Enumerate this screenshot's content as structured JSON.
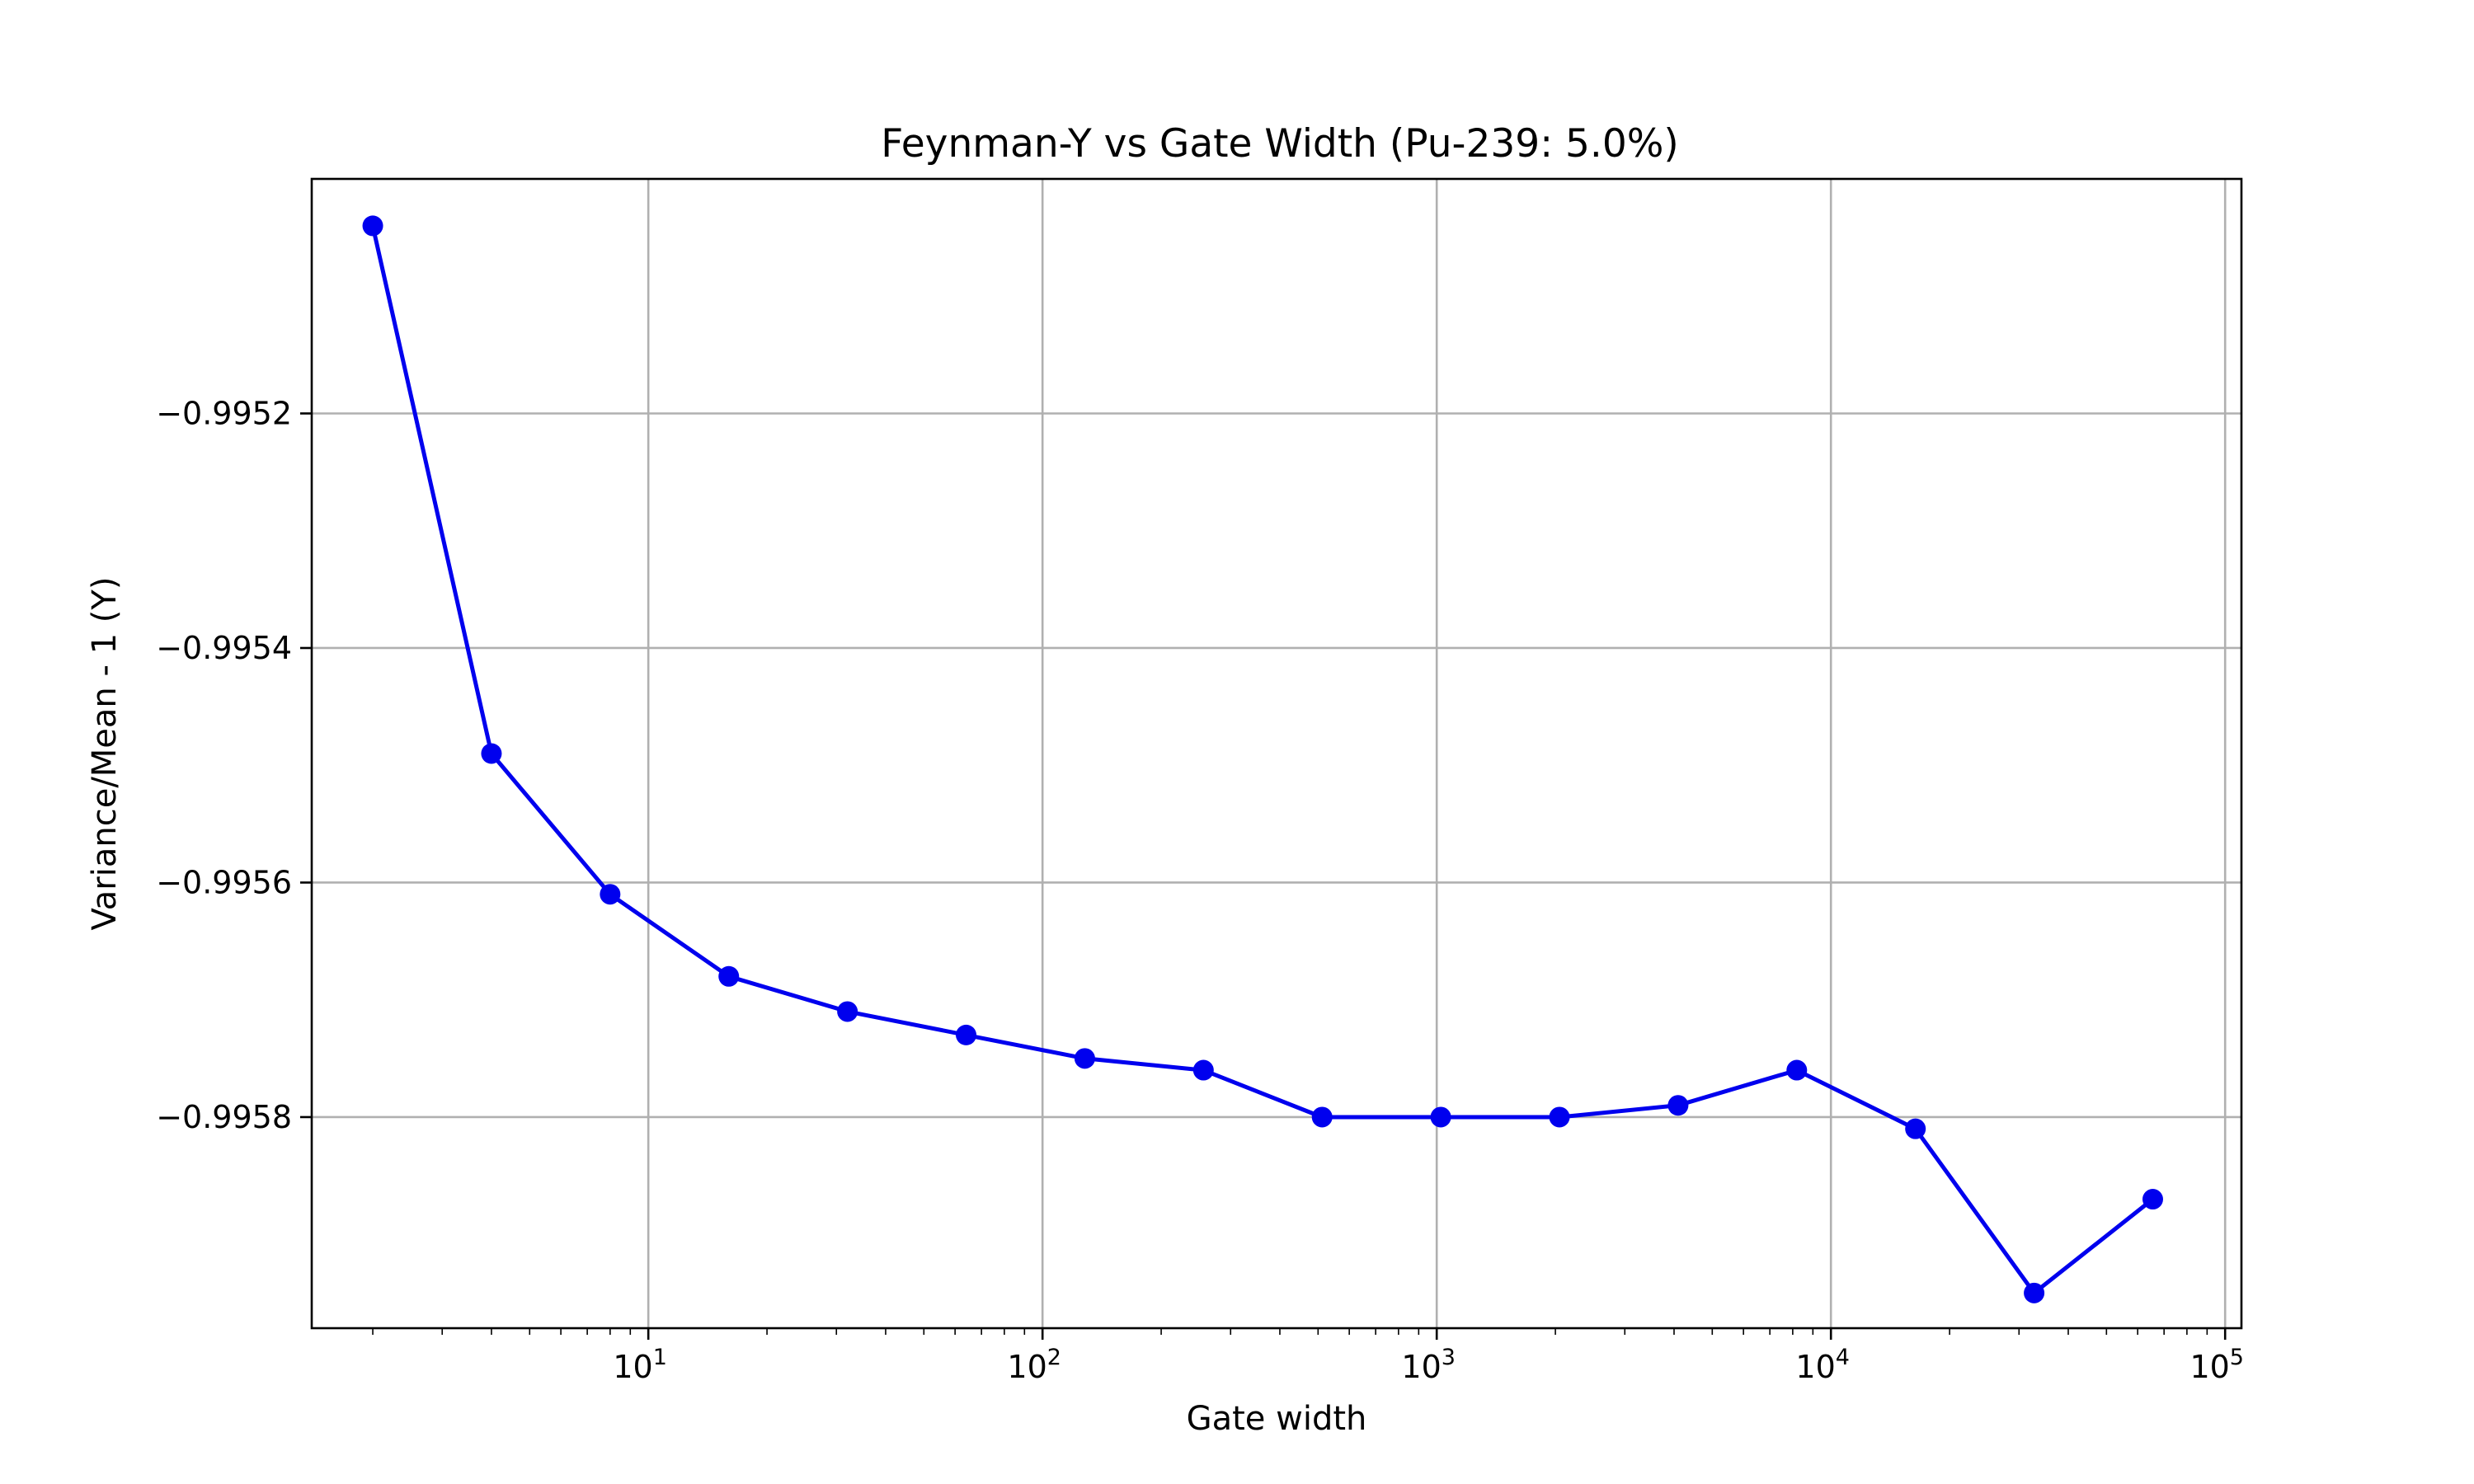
{
  "chart_data": {
    "type": "line",
    "title": "Feynman-Y vs Gate Width (Pu-239: 5.0%)",
    "xlabel": "Gate width",
    "ylabel": "Variance/Mean - 1 (Y)",
    "x_scale": "log",
    "xlim": [
      1.4,
      110000
    ],
    "ylim": [
      -0.99598,
      -0.995
    ],
    "grid": true,
    "x_tick_values": [
      10,
      100,
      1000,
      10000,
      100000
    ],
    "x_tick_labels": [
      {
        "base": "10",
        "exp": "1"
      },
      {
        "base": "10",
        "exp": "2"
      },
      {
        "base": "10",
        "exp": "3"
      },
      {
        "base": "10",
        "exp": "4"
      },
      {
        "base": "10",
        "exp": "5"
      }
    ],
    "y_ticks": [
      -0.9952,
      -0.9954,
      -0.9956,
      -0.9958
    ],
    "y_tick_labels": [
      "−0.9952",
      "−0.9954",
      "−0.9956",
      "−0.9958"
    ],
    "series": [
      {
        "color": "#0000ee",
        "marker": "circle",
        "x": [
          2,
          4,
          8,
          16,
          32,
          64,
          128,
          256,
          512,
          1024,
          2048,
          4096,
          8192,
          16384,
          32768,
          65536
        ],
        "y": [
          -0.99504,
          -0.99549,
          -0.99561,
          -0.99568,
          -0.99571,
          -0.99573,
          -0.99575,
          -0.99576,
          -0.9958,
          -0.9958,
          -0.9958,
          -0.99579,
          -0.99576,
          -0.99581,
          -0.99595,
          -0.99587
        ]
      }
    ]
  }
}
